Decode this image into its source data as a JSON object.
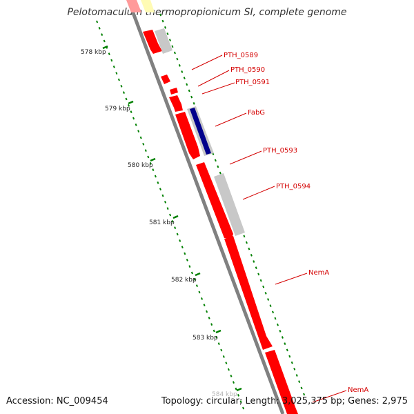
{
  "title": "Pelotomaculum thermopropionicum SI, complete genome",
  "accession_label": "Accession: NC_009454",
  "summary_label": "Topology: circular; Length: 3,025,375 bp; Genes: 2,975",
  "colors": {
    "backbone": "#808080",
    "gene": "#ff0000",
    "gene_dark": "#b00000",
    "gene_grey": "#c8c8c8",
    "gene_blue": "#00008b",
    "gene_yellow": "#fffbb4",
    "tick_green": "#008000",
    "label_red": "#d40000"
  },
  "scale_ticks": [
    {
      "label": "578 kbp"
    },
    {
      "label": "579 kbp"
    },
    {
      "label": "580 kbp"
    },
    {
      "label": "581 kbp"
    },
    {
      "label": "582 kbp"
    },
    {
      "label": "583 kbp"
    },
    {
      "label": "584 kbp"
    }
  ],
  "gene_labels": [
    {
      "name": "PTH_0589"
    },
    {
      "name": "PTH_0590"
    },
    {
      "name": "PTH_0591"
    },
    {
      "name": "FabG"
    },
    {
      "name": "PTH_0593"
    },
    {
      "name": "PTH_0594"
    },
    {
      "name": "NemA"
    },
    {
      "name": "NemA"
    }
  ]
}
